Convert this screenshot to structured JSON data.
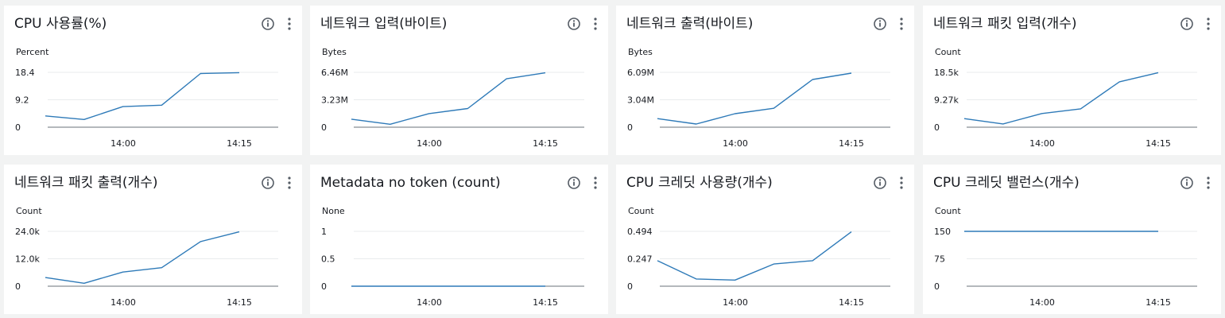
{
  "colors": {
    "line": "#2e7ab8",
    "grid": "#e9ebed",
    "axis": "#687078"
  },
  "panels": [
    {
      "title": "CPU 사용률(%)",
      "chart_data": {
        "type": "line",
        "ylabel": "Percent",
        "yticks": [
          "0",
          "9.2",
          "18.4"
        ],
        "ylim": [
          0,
          18.4
        ],
        "xticks": [
          "14:00",
          "14:15"
        ],
        "series": [
          {
            "values": [
              3.8,
              2.6,
              6.9,
              7.4,
              18.0,
              18.3
            ]
          }
        ]
      }
    },
    {
      "title": "네트워크 입력(바이트)",
      "chart_data": {
        "type": "line",
        "ylabel": "Bytes",
        "yticks": [
          "0",
          "3.23M",
          "6.46M"
        ],
        "ylim": [
          0,
          6.46
        ],
        "xticks": [
          "14:00",
          "14:15"
        ],
        "series": [
          {
            "values": [
              0.95,
              0.35,
              1.6,
              2.2,
              5.7,
              6.4
            ]
          }
        ]
      }
    },
    {
      "title": "네트워크 출력(바이트)",
      "chart_data": {
        "type": "line",
        "ylabel": "Bytes",
        "yticks": [
          "0",
          "3.04M",
          "6.09M"
        ],
        "ylim": [
          0,
          6.09
        ],
        "xticks": [
          "14:00",
          "14:15"
        ],
        "series": [
          {
            "values": [
              0.95,
              0.35,
              1.5,
              2.1,
              5.3,
              6.0
            ]
          }
        ]
      }
    },
    {
      "title": "네트워크 패킷 입력(개수)",
      "chart_data": {
        "type": "line",
        "ylabel": "Count",
        "yticks": [
          "0",
          "9.27k",
          "18.5k"
        ],
        "ylim": [
          0,
          18.5
        ],
        "xticks": [
          "14:00",
          "14:15"
        ],
        "series": [
          {
            "values": [
              2.9,
              1.1,
              4.6,
              6.2,
              15.3,
              18.4
            ]
          }
        ]
      }
    },
    {
      "title": "네트워크 패킷 출력(개수)",
      "chart_data": {
        "type": "line",
        "ylabel": "Count",
        "yticks": [
          "0",
          "12.0k",
          "24.0k"
        ],
        "ylim": [
          0,
          24.0
        ],
        "xticks": [
          "14:00",
          "14:15"
        ],
        "series": [
          {
            "values": [
              3.8,
              1.3,
              6.2,
              8.1,
              19.5,
              23.8
            ]
          }
        ]
      }
    },
    {
      "title": "Metadata no token (count)",
      "chart_data": {
        "type": "line",
        "ylabel": "None",
        "yticks": [
          "0",
          "0.5",
          "1"
        ],
        "ylim": [
          0,
          1
        ],
        "xticks": [
          "14:00",
          "14:15"
        ],
        "series": [
          {
            "values": [
              0,
              0,
              0,
              0,
              0,
              0
            ]
          }
        ]
      }
    },
    {
      "title": "CPU 크레딧 사용량(개수)",
      "chart_data": {
        "type": "line",
        "ylabel": "Count",
        "yticks": [
          "0",
          "0.247",
          "0.494"
        ],
        "ylim": [
          0,
          0.494
        ],
        "xticks": [
          "14:00",
          "14:15"
        ],
        "series": [
          {
            "values": [
              0.23,
              0.065,
              0.055,
              0.2,
              0.23,
              0.49
            ]
          }
        ]
      }
    },
    {
      "title": "CPU 크레딧 밸런스(개수)",
      "chart_data": {
        "type": "line",
        "ylabel": "Count",
        "yticks": [
          "0",
          "75",
          "150"
        ],
        "ylim": [
          0,
          150
        ],
        "xticks": [
          "14:00",
          "14:15"
        ],
        "series": [
          {
            "values": [
              150,
              150,
              150,
              150,
              150,
              150
            ]
          }
        ]
      }
    }
  ]
}
